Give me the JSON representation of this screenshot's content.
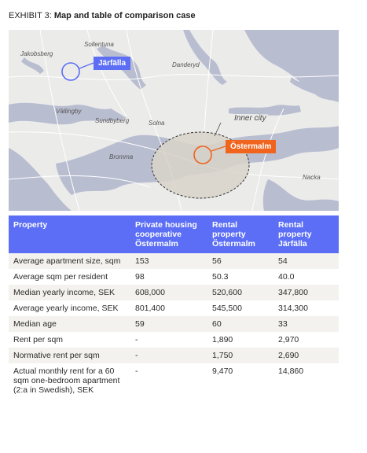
{
  "exhibit": {
    "prefix": "EXHIBIT 3:",
    "title": "Map and table of comparison case"
  },
  "map": {
    "places": {
      "sollentuna": "Sollentuna",
      "jakobsberg": "Jakobsberg",
      "danderyd": "Danderyd",
      "vallingby": "Vällingby",
      "sundbyberg": "Sundbyberg",
      "solna": "Solna",
      "bromma": "Bromma",
      "nacka": "Nacka",
      "inner_city": "Inner city"
    },
    "markers": {
      "jarfalla": "Järfälla",
      "ostermalm": "Östermalm"
    },
    "colors": {
      "jarfalla": "#5b6ef5",
      "ostermalm": "#f0641e",
      "water": "#b9bdd0",
      "land": "#ebebea",
      "inner_city_area": "#d8d3c9"
    }
  },
  "table": {
    "headers": [
      "Property",
      "Private housing cooperative Östermalm",
      "Rental property Östermalm",
      "Rental property Järfälla"
    ],
    "rows": [
      [
        "Average apartment size, sqm",
        "153",
        "56",
        "54"
      ],
      [
        "Average sqm per resident",
        "98",
        "50.3",
        "40.0"
      ],
      [
        "Median yearly income, SEK",
        "608,000",
        "520,600",
        "347,800"
      ],
      [
        "Average yearly income, SEK",
        "801,400",
        "545,500",
        "314,300"
      ],
      [
        "Median age",
        "59",
        "60",
        "33"
      ],
      [
        "Rent per sqm",
        "-",
        "1,890",
        "2,970"
      ],
      [
        "Normative rent per sqm",
        "-",
        "1,750",
        "2,690"
      ],
      [
        "Actual monthly rent for a 60 sqm one-bedroom apartment (2:a in Swedish), SEK",
        "-",
        "9,470",
        "14,860"
      ]
    ],
    "header_color": "#5b6ef5",
    "stripe_color": "#f3f2ee"
  }
}
